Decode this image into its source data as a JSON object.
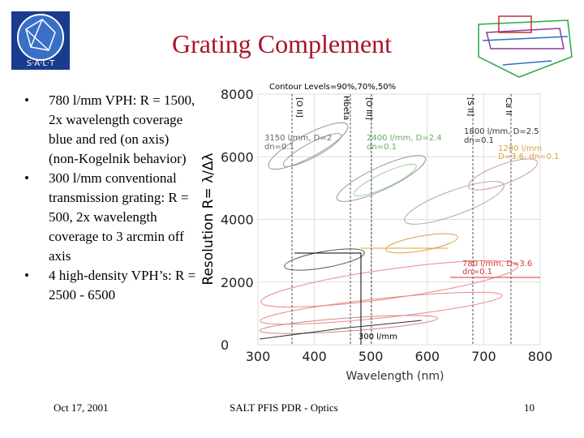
{
  "header": {
    "title": "Grating Complement"
  },
  "bullets": [
    "780 l/mm VPH: R = 1500, 2x wavelength coverage blue and red (on axis) (non-Kogelnik behavior)",
    "300 l/mm conventional transmission grating: R = 500, 2x wavelength coverage to 3 arcmin off axis",
    "4 high-density VPH’s: R = 2500 - 6500"
  ],
  "figure": {
    "y_label": "Resolution R= λ/Δλ",
    "x_label": "Wavelength (nm)",
    "xticks": [
      300,
      400,
      500,
      600,
      700,
      800
    ],
    "yticks": [
      0,
      2000,
      4000,
      6000,
      8000
    ],
    "annotations": {
      "contours": "Contour Levels=90%,70%,50%",
      "g3150": "3150 l/mm, D=2",
      "g3150dn": "dn=0.1",
      "g2400": "2400 l/mm, D=2.4",
      "g2400dn": "dn=0.1",
      "g1800": "1800 l/mm, D=2.5",
      "g1800dn": "dn=0.1",
      "g1200": "1200 l/mm",
      "g1200d": "D=3.6, dn=0.1",
      "g780": "780 l/mm, D=3.6",
      "g780dn": "dn=0.1",
      "g300": "300 l/mm"
    },
    "lines": {
      "oii": "[O II]",
      "hbeta": "Hbeta",
      "oiii": "[O III]",
      "sii": "[S II]",
      "caii": "Ca II"
    }
  },
  "footer": {
    "date": "Oct 17, 2001",
    "center": "SALT PFIS PDR - Optics",
    "page": "10"
  }
}
